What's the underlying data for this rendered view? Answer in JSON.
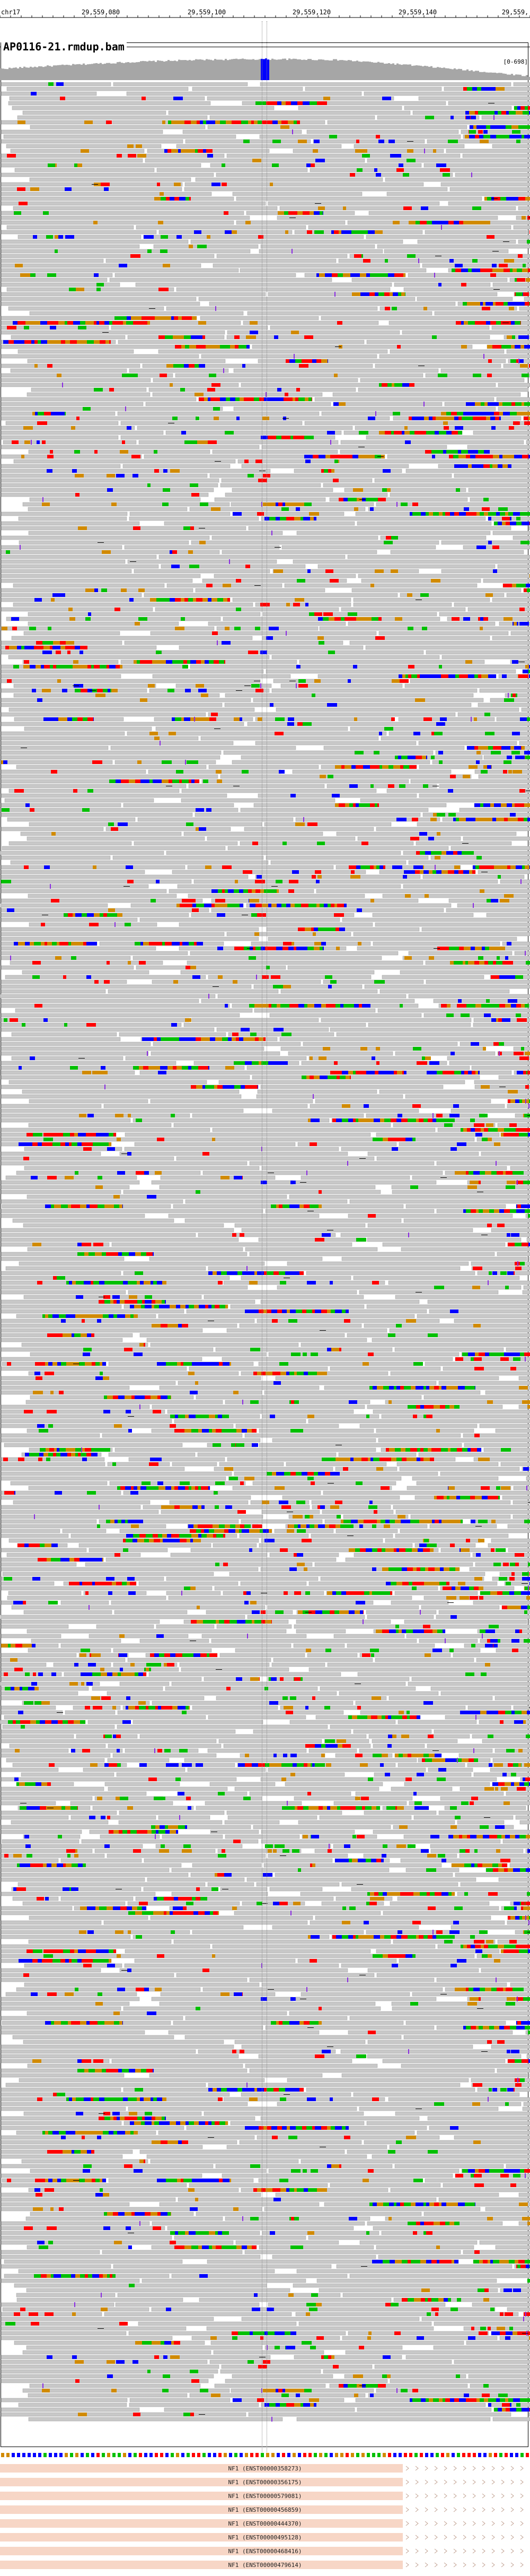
{
  "app": {
    "name": "IGV alignment view"
  },
  "ruler": {
    "chromosome": "chr17",
    "ticks": [
      "29,559,080",
      "29,559,100",
      "29,559,120",
      "29,559,140",
      "29,559,"
    ]
  },
  "track": {
    "name": "AP0116-21.rmdup.bam",
    "coverage_scale": "[0-698]"
  },
  "colors": {
    "read": "#c8c8c8",
    "read_border": "#9a9a9a",
    "mismatch_A": "#00c000",
    "mismatch_C": "#0000ff",
    "mismatch_G": "#d18a00",
    "mismatch_T": "#ff0000",
    "insertion": "#8a2be2",
    "coverage": "#a6a6a6",
    "feature": "#f7d6c6",
    "highlight_col": "#0000ff"
  },
  "sequence_colors": [
    "#00c000",
    "#0000ff",
    "#d18a00",
    "#ff0000"
  ],
  "features": [
    {
      "label": "NF1 (ENST00000358273)"
    },
    {
      "label": "NF1 (ENST00000356175)"
    },
    {
      "label": "NF1 (ENST00000579081)"
    },
    {
      "label": "NF1 (ENST00000456859)"
    },
    {
      "label": "NF1 (ENST00000444370)"
    },
    {
      "label": "NF1 (ENST00000495128)"
    },
    {
      "label": "NF1 (ENST00000468416)"
    },
    {
      "label": "NF1 (ENST00000479614)"
    }
  ]
}
